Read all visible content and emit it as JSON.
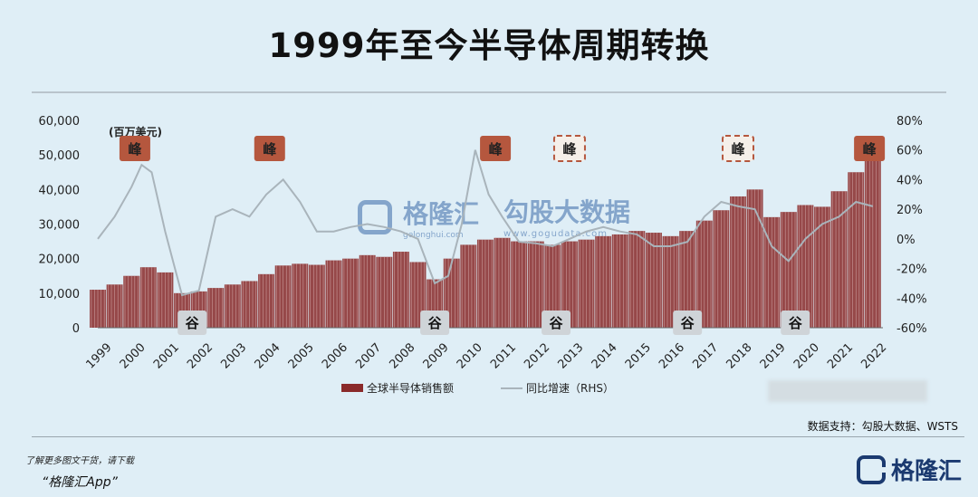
{
  "title": "1999年至今半导体周期转换",
  "unit_label": "(百万美元)",
  "source": "数据支持：勾股大数据、WSTS",
  "promo": {
    "line1": "了解更多图文干货，请下载",
    "line2": "“格隆汇App”"
  },
  "brand": {
    "name": "格隆汇"
  },
  "watermarks": {
    "left_name": "格隆汇",
    "left_sub": "gelonghui.com",
    "right_name": "勾股大数据",
    "right_sub": "www.gogudata.com"
  },
  "markers": {
    "peak_label": "峰",
    "trough_label": "谷",
    "peaks": [
      {
        "year": 2000.1,
        "style": "solid"
      },
      {
        "year": 2004.1,
        "style": "solid"
      },
      {
        "year": 2010.8,
        "style": "solid"
      },
      {
        "year": 2013.0,
        "style": "dashed"
      },
      {
        "year": 2018.0,
        "style": "dashed"
      },
      {
        "year": 2021.9,
        "style": "solid"
      }
    ],
    "troughs": [
      2001.8,
      2009.0,
      2012.6,
      2016.5,
      2019.7
    ]
  },
  "colors": {
    "bar": "#8a2a2a",
    "bar_light": "#c99a9a",
    "line": "#a9b4bb",
    "peak_solid": "#b5573e",
    "marker_bg": "#cfd4d8"
  },
  "chart_data": {
    "type": "bar",
    "title": "",
    "x_tick_labels": [
      "1999",
      "2000",
      "2001",
      "2002",
      "2003",
      "2004",
      "2005",
      "2006",
      "2007",
      "2008",
      "2009",
      "2010",
      "2011",
      "2012",
      "2013",
      "2014",
      "2015",
      "2016",
      "2017",
      "2018",
      "2019",
      "2020",
      "2021",
      "2022"
    ],
    "x_range": [
      1999,
      2022.3
    ],
    "ylim_left": [
      0,
      60000
    ],
    "ylim_right": [
      -60,
      80
    ],
    "yticks_left": [
      "0",
      "10,000",
      "20,000",
      "30,000",
      "40,000",
      "50,000",
      "60,000"
    ],
    "yticks_right": [
      "-60%",
      "-40%",
      "-20%",
      "0%",
      "20%",
      "40%",
      "60%",
      "80%"
    ],
    "legend": [
      "全球半导体销售额",
      "同比增速（RHS）"
    ],
    "series": [
      {
        "name": "全球半导体销售额",
        "kind": "bar",
        "x": [
          1999.0,
          1999.5,
          2000.0,
          2000.5,
          2001.0,
          2001.5,
          2002.0,
          2002.5,
          2003.0,
          2003.5,
          2004.0,
          2004.5,
          2005.0,
          2005.5,
          2006.0,
          2006.5,
          2007.0,
          2007.5,
          2008.0,
          2008.5,
          2009.0,
          2009.5,
          2010.0,
          2010.5,
          2011.0,
          2011.5,
          2012.0,
          2012.5,
          2013.0,
          2013.5,
          2014.0,
          2014.5,
          2015.0,
          2015.5,
          2016.0,
          2016.5,
          2017.0,
          2017.5,
          2018.0,
          2018.5,
          2019.0,
          2019.5,
          2020.0,
          2020.5,
          2021.0,
          2021.5,
          2022.0
        ],
        "values": [
          11000,
          12500,
          15000,
          17500,
          16000,
          10000,
          10500,
          11500,
          12500,
          13500,
          15500,
          18000,
          18500,
          18200,
          19500,
          20000,
          21000,
          20500,
          22000,
          19000,
          14000,
          20000,
          24000,
          25500,
          26000,
          25000,
          25000,
          24000,
          25000,
          25500,
          26500,
          27000,
          28000,
          27500,
          26500,
          28000,
          31000,
          34000,
          38000,
          40000,
          32000,
          33500,
          35500,
          35000,
          39500,
          45000,
          52000
        ]
      },
      {
        "name": "同比增速（RHS）",
        "kind": "line",
        "x": [
          1999.0,
          1999.5,
          2000.0,
          2000.3,
          2000.6,
          2001.0,
          2001.5,
          2002.0,
          2002.5,
          2003.0,
          2003.5,
          2004.0,
          2004.5,
          2005.0,
          2005.5,
          2006.0,
          2006.5,
          2007.0,
          2007.5,
          2008.0,
          2008.5,
          2009.0,
          2009.4,
          2009.8,
          2010.2,
          2010.6,
          2011.0,
          2011.5,
          2012.0,
          2012.5,
          2013.0,
          2013.5,
          2014.0,
          2014.5,
          2015.0,
          2015.5,
          2016.0,
          2016.5,
          2017.0,
          2017.5,
          2018.0,
          2018.5,
          2019.0,
          2019.5,
          2020.0,
          2020.5,
          2021.0,
          2021.5,
          2022.0
        ],
        "values": [
          0,
          15,
          35,
          50,
          45,
          5,
          -38,
          -35,
          15,
          20,
          15,
          30,
          40,
          25,
          5,
          5,
          8,
          10,
          8,
          5,
          0,
          -30,
          -25,
          10,
          60,
          30,
          15,
          -2,
          -3,
          -5,
          0,
          5,
          8,
          5,
          3,
          -5,
          -5,
          -2,
          15,
          25,
          22,
          20,
          -5,
          -15,
          0,
          10,
          15,
          25,
          22
        ]
      }
    ]
  }
}
